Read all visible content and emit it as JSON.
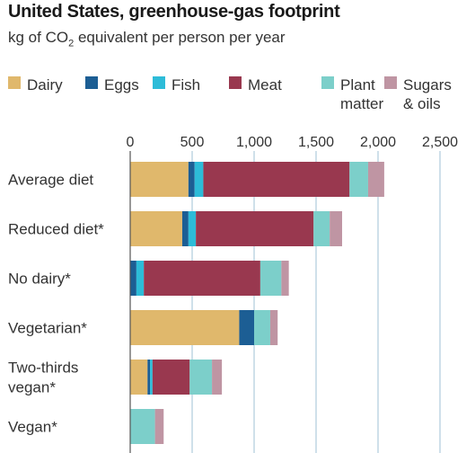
{
  "title": "United States, greenhouse-gas footprint",
  "subtitle_main": "kg of CO",
  "subtitle_sub": "2",
  "subtitle_rest": " equivalent per person per year",
  "chart_data": {
    "type": "bar",
    "orientation": "horizontal",
    "stacked": true,
    "xlim": [
      0,
      2500
    ],
    "xticks": [
      0,
      500,
      1000,
      1500,
      2000,
      2500
    ],
    "xtick_labels": [
      "0",
      "500",
      "1,000",
      "1,500",
      "2,000",
      "2,500"
    ],
    "grid": true,
    "legend_position": "top",
    "categories": [
      "Average diet",
      "Reduced diet*",
      "No dairy*",
      "Vegetarian*",
      "Two-thirds vegan*",
      "Vegan*"
    ],
    "category_lines": [
      [
        "Average diet"
      ],
      [
        "Reduced diet*"
      ],
      [
        "No dairy*"
      ],
      [
        "Vegetarian*"
      ],
      [
        "Two-thirds",
        "vegan*"
      ],
      [
        "Vegan*"
      ]
    ],
    "series": [
      {
        "name": "Dairy",
        "legend_lines": [
          "Dairy"
        ],
        "color": "#e0b86c",
        "values": [
          470,
          420,
          0,
          880,
          140,
          0
        ]
      },
      {
        "name": "Eggs",
        "legend_lines": [
          "Eggs"
        ],
        "color": "#1c5e94",
        "values": [
          50,
          50,
          50,
          120,
          20,
          0
        ]
      },
      {
        "name": "Fish",
        "legend_lines": [
          "Fish"
        ],
        "color": "#2dbcd8",
        "values": [
          70,
          60,
          60,
          0,
          20,
          0
        ]
      },
      {
        "name": "Meat",
        "legend_lines": [
          "Meat"
        ],
        "color": "#99384f",
        "values": [
          1180,
          950,
          940,
          0,
          300,
          0
        ]
      },
      {
        "name": "Plant matter",
        "legend_lines": [
          "Plant",
          "matter"
        ],
        "color": "#7ccfca",
        "values": [
          150,
          130,
          170,
          130,
          180,
          200
        ]
      },
      {
        "name": "Sugars & oils",
        "legend_lines": [
          "Sugars",
          "& oils"
        ],
        "color": "#bf95a3",
        "values": [
          130,
          100,
          60,
          60,
          80,
          70
        ]
      }
    ]
  }
}
